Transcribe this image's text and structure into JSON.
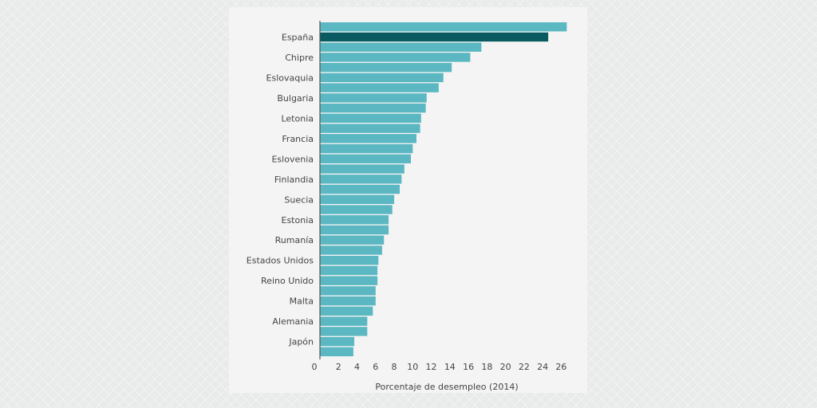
{
  "chart_data": {
    "type": "bar",
    "orientation": "horizontal",
    "xlabel": "Porcentaje de desempleo (2014)",
    "ylabel": "",
    "xlim": [
      0,
      28
    ],
    "xticks": [
      0,
      2,
      4,
      6,
      8,
      10,
      12,
      14,
      16,
      18,
      20,
      22,
      24,
      26
    ],
    "categories": [
      "",
      "España",
      "",
      "Chipre",
      "",
      "Eslovaquia",
      "",
      "Bulgaria",
      "",
      "Letonia",
      "",
      "Francia",
      "",
      "Eslovenia",
      "",
      "Finlandia",
      "",
      "Suecia",
      "",
      "Estonia",
      "",
      "Rumanía",
      "",
      "Estados Unidos",
      "",
      "Reino Unido",
      "",
      "Malta",
      "",
      "Alemania",
      "",
      "Japón",
      ""
    ],
    "values": [
      26.6,
      24.6,
      17.4,
      16.2,
      14.2,
      13.3,
      12.8,
      11.5,
      11.4,
      10.9,
      10.8,
      10.4,
      10.0,
      9.8,
      9.1,
      8.8,
      8.6,
      8.0,
      7.8,
      7.4,
      7.4,
      6.9,
      6.7,
      6.3,
      6.2,
      6.2,
      6.0,
      6.0,
      5.7,
      5.1,
      5.1,
      3.7,
      3.6
    ],
    "highlight_index": 1,
    "colors": {
      "bar": "#5bb7c1",
      "highlight": "#0a5b61",
      "axis": "#555555"
    },
    "grid": false,
    "legend": "none"
  }
}
